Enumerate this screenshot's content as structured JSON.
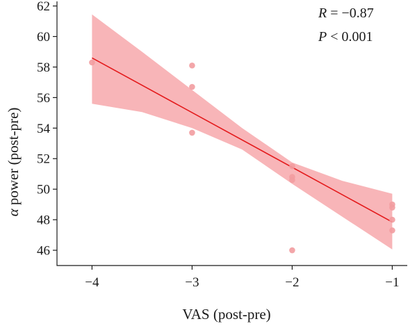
{
  "chart_data": {
    "type": "scatter",
    "xlabel": "VAS (post-pre)",
    "ylabel_symbol": "α",
    "ylabel": " power (post-pre)",
    "xlim": [
      -4.35,
      -0.85
    ],
    "ylim": [
      45.0,
      62.3
    ],
    "x_ticks": [
      -4,
      -3,
      -2,
      -1
    ],
    "x_tick_labels": [
      "−4",
      "−3",
      "−2",
      "−1"
    ],
    "y_ticks": [
      46,
      48,
      50,
      52,
      54,
      56,
      58,
      60,
      62
    ],
    "y_tick_labels": [
      "46",
      "48",
      "50",
      "52",
      "54",
      "56",
      "58",
      "60",
      "62"
    ],
    "points": [
      {
        "x": -4.0,
        "y": 58.3
      },
      {
        "x": -3.0,
        "y": 58.1
      },
      {
        "x": -3.0,
        "y": 56.7
      },
      {
        "x": -3.0,
        "y": 53.7
      },
      {
        "x": -2.0,
        "y": 51.5
      },
      {
        "x": -2.0,
        "y": 50.8
      },
      {
        "x": -2.0,
        "y": 50.6
      },
      {
        "x": -2.0,
        "y": 46.0
      },
      {
        "x": -1.0,
        "y": 49.0
      },
      {
        "x": -1.0,
        "y": 48.8
      },
      {
        "x": -1.0,
        "y": 48.0
      },
      {
        "x": -1.0,
        "y": 47.3
      }
    ],
    "regression": {
      "x": [
        -4.0,
        -1.0
      ],
      "y": [
        58.6,
        47.85
      ]
    },
    "confidence_band": {
      "x": [
        -4.0,
        -3.5,
        -3.0,
        -2.5,
        -2.0,
        -1.5,
        -1.0
      ],
      "upper": [
        61.45,
        59.0,
        56.5,
        54.0,
        51.75,
        50.55,
        49.7
      ],
      "lower": [
        55.6,
        55.05,
        54.0,
        52.6,
        50.35,
        48.2,
        46.05
      ]
    },
    "annotations": {
      "r_symbol": "R",
      "r_value": " = −0.87",
      "p_symbol": "P",
      "p_value": " < 0.001"
    },
    "colors": {
      "line": "#e41a1c",
      "band": "#f7a8ab",
      "point": "#f29ca0",
      "axis": "#1a1a1a"
    },
    "grid": false,
    "legend": "none"
  }
}
